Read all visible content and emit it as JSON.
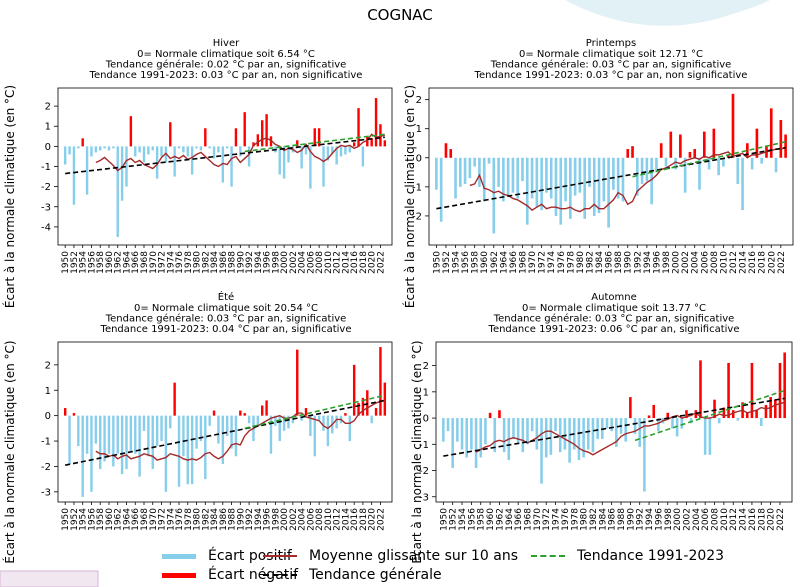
{
  "title": "COGNAC",
  "colors": {
    "ecart_positif": "#87CEEB",
    "ecart_negatif": "#FF0000",
    "moyenne": "#A52A2A",
    "tendance_generale": "#000000",
    "tendance_1991": "#2CA02C"
  },
  "legend": {
    "ecart_positif": "Écart positif",
    "ecart_negatif": "Écart négatif",
    "moyenne": "Moyenne glissante sur 10 ans",
    "tendance_generale": "Tendance générale",
    "tendance_1991": "Tendance 1991-2023"
  },
  "chart_data": [
    {
      "type": "bar",
      "title": "Hiver",
      "subtitle_lines": [
        "0= Normale climatique soit 6.54 °C",
        "Tendance générale: 0.02  °C par an, significative",
        "Tendance 1991-2023: 0.03 °C par an, non significative"
      ],
      "ylabel": "Écart à la normale climatique (en °C)",
      "x_start": 1950,
      "ylim": [
        -4.9,
        2.9
      ],
      "yticks": [
        -4,
        -3,
        -2,
        -1,
        0,
        1,
        2
      ],
      "values": [
        -0.9,
        -0.4,
        -2.9,
        -0.1,
        0.4,
        -2.4,
        -0.5,
        -0.3,
        -0.2,
        -0.1,
        -0.2,
        -0.1,
        -4.5,
        -2.7,
        -2.0,
        1.5,
        -0.5,
        -0.3,
        -0.8,
        -0.4,
        -0.2,
        -1.6,
        -0.5,
        -0.8,
        1.2,
        -1.5,
        -0.1,
        -0.3,
        -0.5,
        -1.4,
        -0.1,
        -0.2,
        0.9,
        -0.1,
        -0.6,
        -0.3,
        -1.8,
        -0.1,
        -2.0,
        0.9,
        -0.5,
        1.7,
        -1.0,
        0.2,
        0.6,
        1.3,
        1.6,
        0.5,
        -0.3,
        -1.4,
        -1.6,
        -0.8,
        -0.3,
        0.3,
        -1.1,
        -0.4,
        -2.1,
        0.9,
        0.9,
        -2.0,
        -0.7,
        -0.4,
        -0.9,
        -0.5,
        -0.4,
        -0.3,
        0.2,
        1.9,
        -1.0,
        0.5,
        0.4,
        2.4,
        1.1,
        0.3
      ],
      "moving_avg_x": [
        1957,
        1958,
        1959,
        1960,
        1961,
        1962,
        1963,
        1964,
        1965,
        1966,
        1967,
        1968,
        1969,
        1970,
        1971,
        1972,
        1973,
        1974,
        1975,
        1976,
        1977,
        1978,
        1979,
        1980,
        1981,
        1982,
        1983,
        1984,
        1985,
        1986,
        1987,
        1988,
        1989,
        1990,
        1991,
        1992,
        1993,
        1994,
        1995,
        1996,
        1997,
        1998,
        1999,
        2000,
        2001,
        2002,
        2003,
        2004,
        2005,
        2006,
        2007,
        2008,
        2009,
        2010,
        2011,
        2012,
        2013,
        2014,
        2015,
        2016,
        2017,
        2018,
        2019,
        2020,
        2021,
        2022,
        2023
      ],
      "moving_avg": [
        -0.8,
        -0.7,
        -0.55,
        -0.75,
        -0.95,
        -1.2,
        -1.05,
        -0.7,
        -0.6,
        -0.8,
        -0.7,
        -0.9,
        -1.0,
        -1.1,
        -0.9,
        -0.55,
        -0.35,
        -0.6,
        -0.5,
        -0.6,
        -0.45,
        -0.65,
        -0.55,
        -0.4,
        -0.3,
        -0.5,
        -0.7,
        -0.9,
        -1.0,
        -0.85,
        -0.9,
        -0.6,
        -0.5,
        -0.8,
        -0.6,
        -0.4,
        0.05,
        0.2,
        0.35,
        0.4,
        0.3,
        0.1,
        0.0,
        -0.2,
        -0.1,
        -0.15,
        -0.3,
        -0.2,
        0.1,
        -0.25,
        -0.5,
        -0.6,
        -0.75,
        -0.6,
        -0.35,
        -0.1,
        0.05,
        0.0,
        0.05,
        -0.1,
        0.0,
        0.2,
        0.3,
        0.6,
        0.45,
        0.5,
        0.55
      ],
      "trend_general": [
        [
          1950,
          -1.35
        ],
        [
          2023,
          0.45
        ]
      ],
      "trend_1991": [
        [
          1991,
          -0.25
        ],
        [
          2023,
          0.6
        ]
      ]
    },
    {
      "type": "bar",
      "title": "Printemps",
      "subtitle_lines": [
        "0= Normale climatique soit 12.71 °C",
        "Tendance générale: 0.03  °C par an, significative",
        "Tendance 1991-2023: 0.03 °C par an, non significative"
      ],
      "ylabel": "Écart à la normale climatique (en °C)",
      "x_start": 1950,
      "ylim": [
        -3.0,
        2.4
      ],
      "yticks": [
        -2,
        -1,
        0,
        1,
        2
      ],
      "values": [
        -1.1,
        -2.2,
        0.5,
        0.3,
        -1.4,
        -1.0,
        -0.9,
        -0.7,
        -0.3,
        -1.0,
        -1.5,
        -0.2,
        -2.6,
        -1.0,
        -1.5,
        -1.3,
        -1.2,
        -1.4,
        -0.8,
        -2.3,
        -1.4,
        -1.7,
        -1.8,
        -1.2,
        -1.4,
        -2.0,
        -2.3,
        -1.5,
        -2.1,
        -1.3,
        -1.2,
        -2.1,
        -1.0,
        -2.0,
        -1.9,
        -1.5,
        -2.4,
        -1.1,
        -1.4,
        -1.5,
        0.3,
        0.4,
        -1.3,
        -0.9,
        -0.8,
        -1.6,
        -0.5,
        0.5,
        -0.3,
        0.9,
        -0.4,
        0.8,
        -1.2,
        0.2,
        0.3,
        -1.1,
        0.9,
        -0.4,
        1.0,
        -0.6,
        -0.3,
        0.1,
        2.2,
        -0.9,
        -1.8,
        0.5,
        -0.4,
        1.0,
        -0.2,
        0.4,
        1.7,
        -0.5,
        1.3,
        0.8
      ],
      "moving_avg_x": [
        1957,
        1958,
        1959,
        1960,
        1961,
        1962,
        1963,
        1964,
        1965,
        1966,
        1967,
        1968,
        1969,
        1970,
        1971,
        1972,
        1973,
        1974,
        1975,
        1976,
        1977,
        1978,
        1979,
        1980,
        1981,
        1982,
        1983,
        1984,
        1985,
        1986,
        1987,
        1988,
        1989,
        1990,
        1991,
        1992,
        1993,
        1994,
        1995,
        1996,
        1997,
        1998,
        1999,
        2000,
        2001,
        2002,
        2003,
        2004,
        2005,
        2006,
        2007,
        2008,
        2009,
        2010,
        2011,
        2012,
        2013,
        2014,
        2015,
        2016,
        2017,
        2018,
        2019,
        2020,
        2021,
        2022,
        2023
      ],
      "moving_avg": [
        -0.95,
        -0.9,
        -0.6,
        -1.05,
        -1.1,
        -1.2,
        -1.15,
        -1.25,
        -1.3,
        -1.4,
        -1.45,
        -1.55,
        -1.65,
        -1.8,
        -1.7,
        -1.6,
        -1.75,
        -1.7,
        -1.7,
        -1.75,
        -1.75,
        -1.7,
        -1.8,
        -1.85,
        -1.75,
        -1.75,
        -1.6,
        -1.75,
        -1.75,
        -1.6,
        -1.45,
        -1.2,
        -1.3,
        -1.6,
        -1.5,
        -1.15,
        -1.0,
        -0.85,
        -0.75,
        -0.6,
        -0.4,
        -0.35,
        -0.25,
        -0.15,
        -0.2,
        -0.1,
        -0.05,
        0.0,
        -0.05,
        0.05,
        0.0,
        0.1,
        0.1,
        0.15,
        0.2,
        0.05,
        0.1,
        0.15,
        0.0,
        0.1,
        0.1,
        0.15,
        0.2,
        0.25,
        0.3,
        0.3,
        0.35
      ],
      "trend_general": [
        [
          1950,
          -1.75
        ],
        [
          2023,
          0.35
        ]
      ],
      "trend_1991": [
        [
          1991,
          -0.65
        ],
        [
          2023,
          0.55
        ]
      ]
    },
    {
      "type": "bar",
      "title": "Été",
      "subtitle_lines": [
        "0= Normale climatique soit 20.54 °C",
        "Tendance générale: 0.03  °C par an, significative",
        "Tendance 1991-2023: 0.04 °C par an, significative"
      ],
      "ylabel": "Écart à la normale climatique (en °C)",
      "x_start": 1950,
      "ylim": [
        -3.4,
        2.9
      ],
      "yticks": [
        -3,
        -2,
        -1,
        0,
        1,
        2
      ],
      "values": [
        0.3,
        -1.9,
        0.1,
        -1.2,
        -3.2,
        -1.5,
        -3.0,
        -1.1,
        -2.1,
        -1.8,
        -1.5,
        -2.0,
        -1.5,
        -2.3,
        -2.1,
        -1.4,
        -1.5,
        -2.4,
        -0.6,
        -1.6,
        -2.1,
        -1.2,
        -1.0,
        -3.0,
        -0.5,
        1.3,
        -2.8,
        -1.6,
        -2.7,
        -2.7,
        -1.3,
        -1.0,
        -2.5,
        -0.4,
        0.2,
        -1.1,
        -1.9,
        -0.8,
        -1.3,
        -1.6,
        0.2,
        0.1,
        -0.3,
        -1.0,
        -0.4,
        0.4,
        0.6,
        -1.5,
        -0.4,
        -1.0,
        -0.6,
        -0.5,
        -0.3,
        2.6,
        -0.2,
        0.3,
        -0.8,
        -1.6,
        -0.2,
        -0.6,
        -1.2,
        -0.7,
        -0.5,
        -0.3,
        0.1,
        -1.0,
        2.0,
        0.5,
        0.7,
        1.0,
        -0.3,
        0.3,
        2.7,
        1.3
      ],
      "moving_avg_x": [
        1957,
        1958,
        1959,
        1960,
        1961,
        1962,
        1963,
        1964,
        1965,
        1966,
        1967,
        1968,
        1969,
        1970,
        1971,
        1972,
        1973,
        1974,
        1975,
        1976,
        1977,
        1978,
        1979,
        1980,
        1981,
        1982,
        1983,
        1984,
        1985,
        1986,
        1987,
        1988,
        1989,
        1990,
        1991,
        1992,
        1993,
        1994,
        1995,
        1996,
        1997,
        1998,
        1999,
        2000,
        2001,
        2002,
        2003,
        2004,
        2005,
        2006,
        2007,
        2008,
        2009,
        2010,
        2011,
        2012,
        2013,
        2014,
        2015,
        2016,
        2017,
        2018,
        2019,
        2020,
        2021,
        2022,
        2023
      ],
      "moving_avg": [
        -1.4,
        -1.5,
        -1.5,
        -1.6,
        -1.55,
        -1.7,
        -1.6,
        -1.55,
        -1.7,
        -1.65,
        -1.6,
        -1.5,
        -1.55,
        -1.6,
        -1.75,
        -1.7,
        -1.65,
        -1.5,
        -1.55,
        -1.6,
        -1.7,
        -1.75,
        -1.7,
        -1.75,
        -1.65,
        -1.5,
        -1.45,
        -1.6,
        -1.7,
        -1.6,
        -1.4,
        -1.15,
        -1.1,
        -1.15,
        -0.8,
        -0.6,
        -0.5,
        -0.4,
        -0.3,
        -0.2,
        -0.1,
        -0.05,
        0.0,
        -0.1,
        -0.1,
        -0.05,
        0.1,
        0.1,
        -0.05,
        -0.1,
        -0.15,
        -0.2,
        -0.4,
        -0.5,
        -0.35,
        -0.15,
        -0.15,
        -0.3,
        -0.3,
        -0.2,
        0.05,
        0.2,
        0.3,
        0.4,
        0.5,
        0.55,
        0.6
      ],
      "trend_general": [
        [
          1950,
          -1.95
        ],
        [
          2023,
          0.6
        ]
      ],
      "trend_1991": [
        [
          1991,
          -0.5
        ],
        [
          2023,
          0.8
        ]
      ]
    },
    {
      "type": "bar",
      "title": "Automne",
      "subtitle_lines": [
        "0= Normale climatique soit 13.77 °C",
        "Tendance générale: 0.03  °C par an, significative",
        "Tendance 1991-2023: 0.06 °C par an, significative"
      ],
      "ylabel": "Écart à la normale climatique (en °C)",
      "x_start": 1950,
      "ylim": [
        -3.2,
        2.9
      ],
      "yticks": [
        -3,
        -2,
        -1,
        0,
        1,
        2
      ],
      "values": [
        -0.9,
        -0.5,
        -1.9,
        -0.9,
        -1.2,
        -1.5,
        -1.2,
        -1.9,
        -1.5,
        -1.0,
        0.2,
        -1.3,
        0.3,
        -1.3,
        -1.6,
        -0.8,
        -1.0,
        -1.3,
        -1.0,
        -0.5,
        -1.2,
        -2.5,
        -1.5,
        -1.4,
        -0.5,
        -1.3,
        -1.2,
        -1.7,
        -1.2,
        -1.6,
        -1.5,
        -1.2,
        -1.3,
        -0.8,
        -0.8,
        -0.4,
        -0.5,
        -1.1,
        -0.6,
        -0.9,
        0.8,
        -0.6,
        -1.1,
        -2.8,
        0.1,
        0.5,
        -0.5,
        -0.2,
        0.2,
        -0.4,
        -0.7,
        -0.4,
        0.3,
        -0.2,
        0.3,
        2.2,
        -1.4,
        -1.4,
        0.7,
        -0.2,
        0.4,
        2.1,
        0.3,
        -0.1,
        0.6,
        0.2,
        2.1,
        0.3,
        -0.3,
        0.5,
        0.8,
        0.7,
        2.1,
        2.5
      ],
      "moving_avg_x": [
        1957,
        1958,
        1959,
        1960,
        1961,
        1962,
        1963,
        1964,
        1965,
        1966,
        1967,
        1968,
        1969,
        1970,
        1971,
        1972,
        1973,
        1974,
        1975,
        1976,
        1977,
        1978,
        1979,
        1980,
        1981,
        1982,
        1983,
        1984,
        1985,
        1986,
        1987,
        1988,
        1989,
        1990,
        1991,
        1992,
        1993,
        1994,
        1995,
        1996,
        1997,
        1998,
        1999,
        2000,
        2001,
        2002,
        2003,
        2004,
        2005,
        2006,
        2007,
        2008,
        2009,
        2010,
        2011,
        2012,
        2013,
        2014,
        2015,
        2016,
        2017,
        2018,
        2019,
        2020,
        2021,
        2022,
        2023
      ],
      "moving_avg": [
        -1.3,
        -1.2,
        -1.1,
        -1.05,
        -0.9,
        -0.85,
        -0.9,
        -0.8,
        -0.75,
        -0.8,
        -0.85,
        -0.95,
        -0.85,
        -0.75,
        -0.6,
        -0.5,
        -0.5,
        -0.6,
        -0.7,
        -0.8,
        -0.9,
        -1.0,
        -1.15,
        -1.25,
        -1.3,
        -1.4,
        -1.3,
        -1.2,
        -1.1,
        -1.0,
        -0.9,
        -0.7,
        -0.6,
        -0.55,
        -0.5,
        -0.4,
        -0.3,
        -0.3,
        -0.25,
        -0.2,
        -0.1,
        -0.05,
        0.05,
        0.1,
        0.0,
        0.05,
        0.1,
        0.2,
        0.05,
        0.0,
        0.0,
        0.05,
        0.15,
        0.1,
        0.1,
        0.2,
        0.25,
        0.3,
        0.2,
        0.25,
        0.3,
        0.4,
        0.35,
        0.4,
        0.5,
        0.55,
        0.6
      ],
      "trend_general": [
        [
          1950,
          -1.45
        ],
        [
          2023,
          0.75
        ]
      ],
      "trend_1991": [
        [
          1991,
          -0.85
        ],
        [
          2023,
          1.05
        ]
      ]
    }
  ]
}
